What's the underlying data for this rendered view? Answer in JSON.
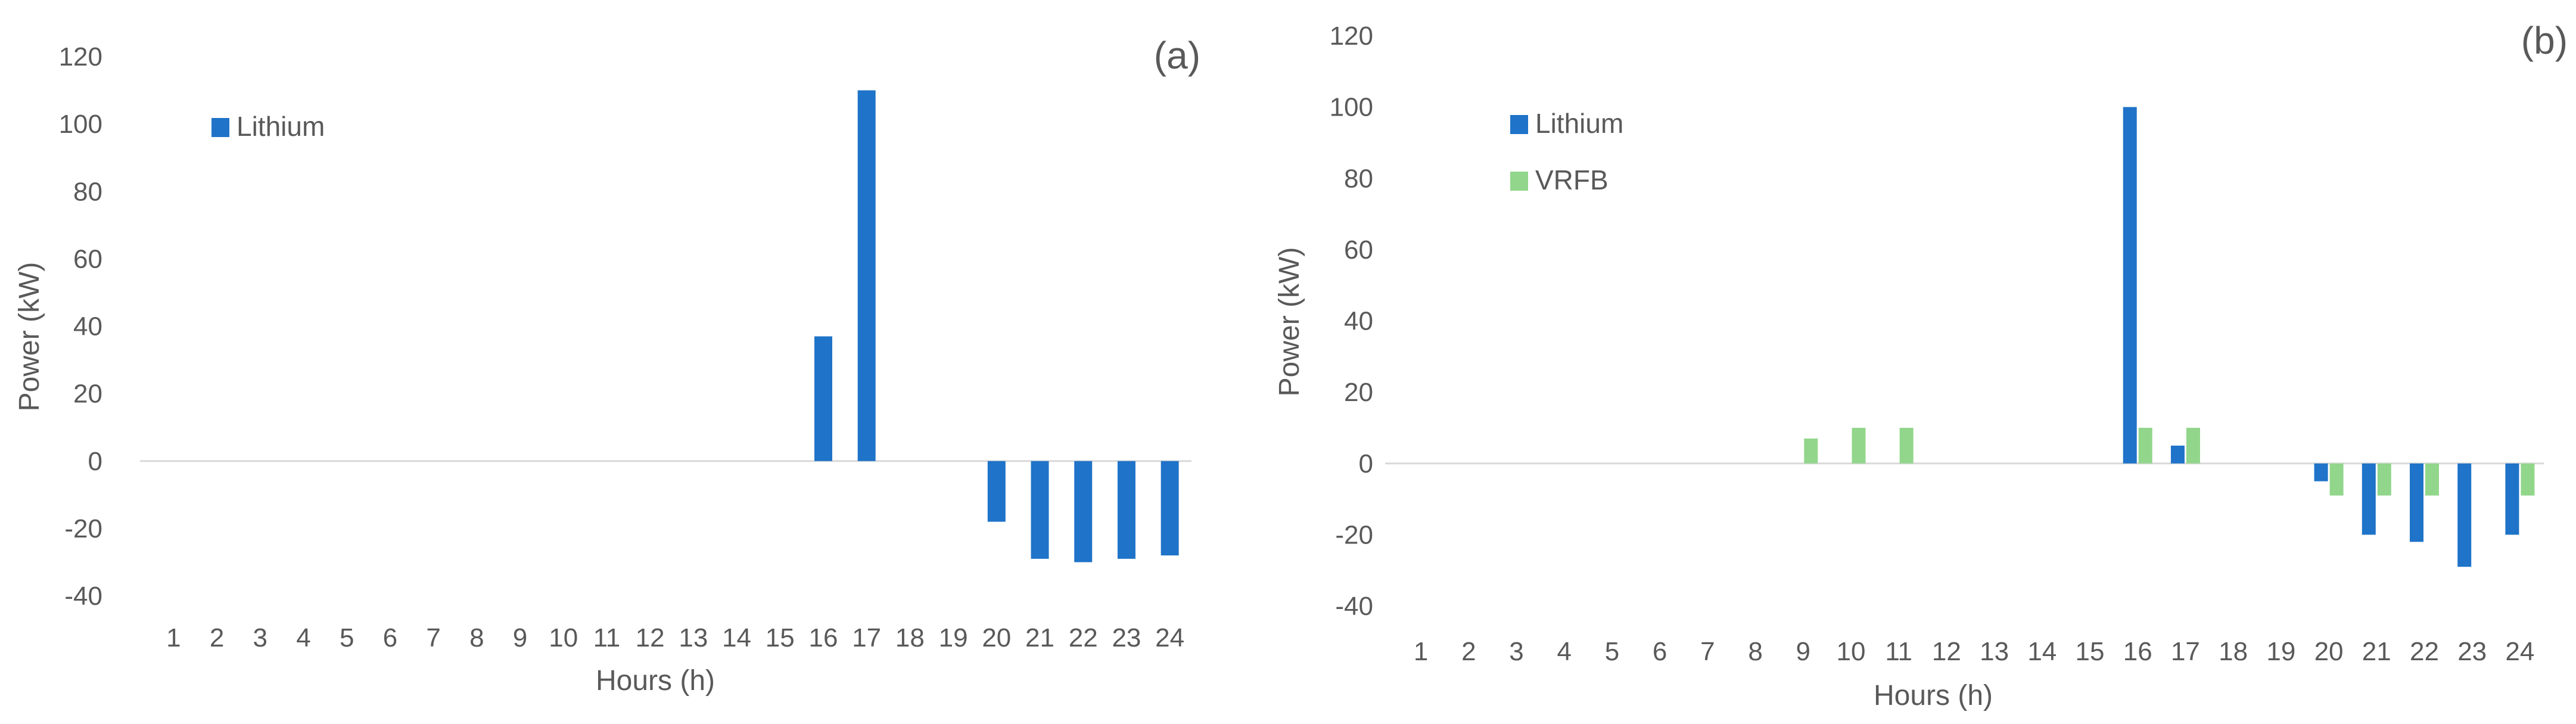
{
  "chart_data": [
    {
      "type": "bar",
      "panel_label": "(a)",
      "xlabel": "Hours (h)",
      "ylabel": "Power (kW)",
      "ylim": [
        -40,
        120
      ],
      "yticks": [
        -40,
        -20,
        0,
        20,
        40,
        60,
        80,
        100,
        120
      ],
      "categories": [
        "1",
        "2",
        "3",
        "4",
        "5",
        "6",
        "7",
        "8",
        "9",
        "10",
        "11",
        "12",
        "13",
        "14",
        "15",
        "16",
        "17",
        "18",
        "19",
        "20",
        "21",
        "22",
        "23",
        "24"
      ],
      "legend_position": "top-left",
      "grid": false,
      "series": [
        {
          "name": "Lithium",
          "color": "#1F73C8",
          "values": [
            0,
            0,
            0,
            0,
            0,
            0,
            0,
            0,
            0,
            0,
            0,
            0,
            0,
            0,
            0,
            37,
            110,
            0,
            0,
            -18,
            -29,
            -30,
            -29,
            -28
          ]
        }
      ]
    },
    {
      "type": "bar",
      "panel_label": "(b)",
      "xlabel": "Hours (h)",
      "ylabel": "Power (kW)",
      "ylim": [
        -40,
        120
      ],
      "yticks": [
        -40,
        -20,
        0,
        20,
        40,
        60,
        80,
        100,
        120
      ],
      "categories": [
        "1",
        "2",
        "3",
        "4",
        "5",
        "6",
        "7",
        "8",
        "9",
        "10",
        "11",
        "12",
        "13",
        "14",
        "15",
        "16",
        "17",
        "18",
        "19",
        "20",
        "21",
        "22",
        "23",
        "24"
      ],
      "legend_position": "top-left",
      "grid": false,
      "series": [
        {
          "name": "Lithium",
          "color": "#1F73C8",
          "values": [
            0,
            0,
            0,
            0,
            0,
            0,
            0,
            0,
            0,
            0,
            0,
            0,
            0,
            0,
            0,
            100,
            5,
            0,
            0,
            -5,
            -20,
            -22,
            -29,
            -20
          ]
        },
        {
          "name": "VRFB",
          "color": "#92D68B",
          "values": [
            0,
            0,
            0,
            0,
            0,
            0,
            0,
            0,
            7,
            10,
            10,
            0,
            0,
            0,
            0,
            10,
            10,
            0,
            0,
            -9,
            -9,
            -9,
            0,
            -9
          ]
        }
      ]
    }
  ]
}
